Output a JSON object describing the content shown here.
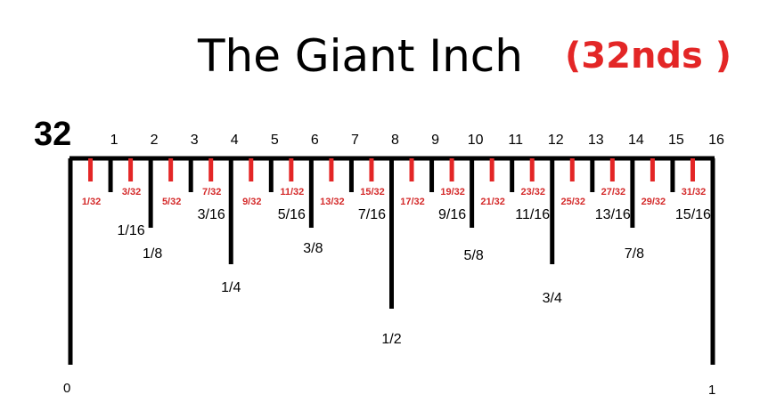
{
  "title": "The Giant Inch",
  "subtitle": "(32nds )",
  "denominator": "32",
  "colors": {
    "black": "#000000",
    "red": "#e32626"
  },
  "numbers": [
    "1",
    "2",
    "3",
    "4",
    "5",
    "6",
    "7",
    "8",
    "9",
    "10",
    "11",
    "12",
    "13",
    "14",
    "15",
    "16"
  ],
  "end_labels": {
    "start": "0",
    "end": "1"
  },
  "odd_32nds": [
    "1/32",
    "3/32",
    "5/32",
    "7/32",
    "9/32",
    "11/32",
    "13/32",
    "15/32",
    "17/32",
    "19/32",
    "21/32",
    "23/32",
    "25/32",
    "27/32",
    "29/32",
    "31/32"
  ],
  "sixteenths": [
    "1/16",
    "3/16",
    "5/16",
    "7/16",
    "9/16",
    "11/16",
    "13/16",
    "15/16"
  ],
  "eighths": [
    "1/8",
    "3/8",
    "5/8",
    "7/8"
  ],
  "quarters": [
    "1/4",
    "3/4"
  ],
  "half": "1/2"
}
